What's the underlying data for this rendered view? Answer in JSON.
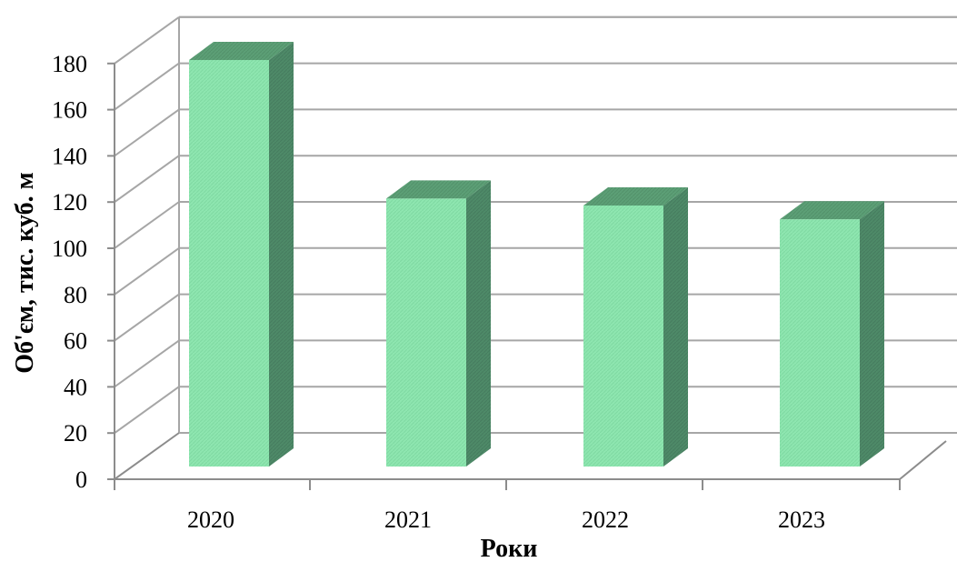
{
  "chart_data": {
    "type": "bar",
    "title": "",
    "xlabel": "Роки",
    "ylabel": "Об'єм, тис. куб. м",
    "categories": [
      "2020",
      "2021",
      "2022",
      "2023"
    ],
    "values": [
      176,
      116,
      113,
      107
    ],
    "ylim": [
      0,
      180
    ],
    "yticks": [
      "0",
      "20",
      "40",
      "60",
      "80",
      "100",
      "120",
      "140",
      "160",
      "180"
    ],
    "grid": true,
    "legend": "none",
    "colors": {
      "bar_front": "#8ee6b0",
      "bar_side": "#4e8a68",
      "bar_top": "#5c9f76",
      "grid": "#a6a6a6",
      "axis": "#8c8c8c"
    }
  }
}
